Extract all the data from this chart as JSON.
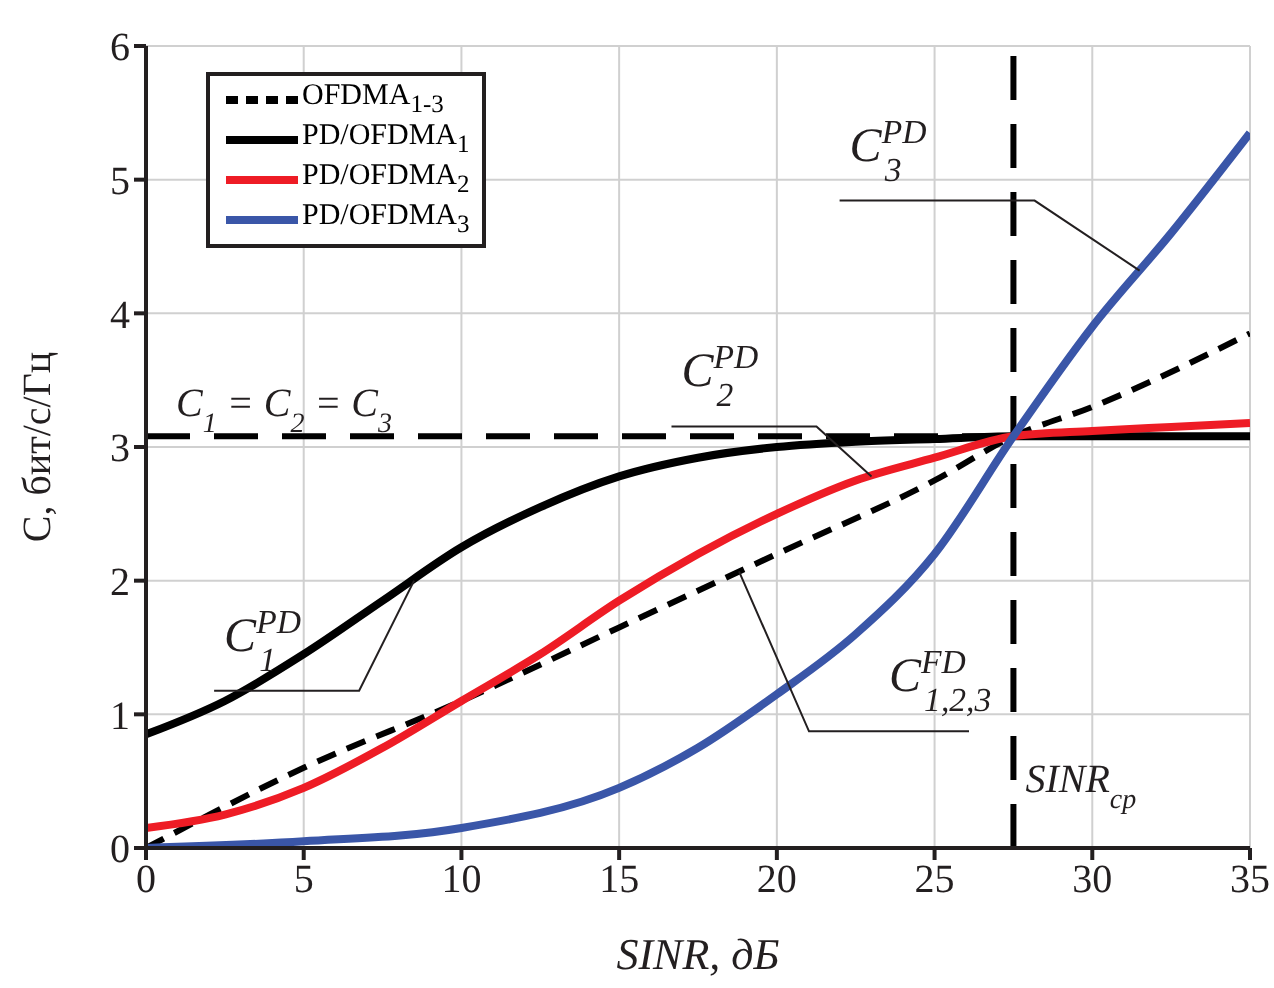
{
  "chart_data": {
    "type": "line",
    "xlabel": "SINR, дБ",
    "ylabel": "C, бит/с/Гц",
    "xlim": [
      0,
      35
    ],
    "xticks": [
      0,
      5,
      10,
      15,
      20,
      25,
      30,
      35
    ],
    "ylim": [
      0,
      6
    ],
    "yticks": [
      0,
      1,
      2,
      3,
      4,
      5,
      6
    ],
    "grid": true,
    "legend": "top left",
    "marker": "none",
    "series": [
      {
        "name": "OFDMA$_{1-3}$",
        "color": "#000000",
        "line_style": "dashed",
        "x": [
          0,
          5,
          10,
          15,
          20,
          25,
          27.5,
          30,
          35
        ],
        "values": [
          0,
          0.6,
          1.1,
          1.65,
          2.2,
          2.75,
          3.08,
          3.3,
          3.85
        ]
      },
      {
        "name": "PD/OFDMA$_{1}$",
        "color": "#000000",
        "line_style": "solid",
        "x": [
          0,
          2.5,
          5,
          7.5,
          10,
          12.5,
          15,
          17.5,
          20,
          22.5,
          25,
          27.5,
          30,
          35
        ],
        "values": [
          0.85,
          1.1,
          1.45,
          1.85,
          2.25,
          2.55,
          2.78,
          2.92,
          3.0,
          3.04,
          3.06,
          3.08,
          3.08,
          3.08
        ]
      },
      {
        "name": "PD/OFDMA$_{2}$",
        "color": "#ee1c25",
        "line_style": "solid",
        "x": [
          0,
          2.5,
          5,
          7.5,
          10,
          12.5,
          15,
          17.5,
          20,
          22.5,
          25,
          27.5,
          30,
          32.5,
          35
        ],
        "values": [
          0.15,
          0.25,
          0.45,
          0.75,
          1.1,
          1.45,
          1.85,
          2.2,
          2.5,
          2.75,
          2.92,
          3.08,
          3.12,
          3.15,
          3.18
        ]
      },
      {
        "name": "PD/OFDMA$_{3}$",
        "color": "#3a56a8",
        "line_style": "solid",
        "x": [
          0,
          5,
          10,
          15,
          17.5,
          20,
          22.5,
          25,
          27.5,
          30,
          32.5,
          35
        ],
        "values": [
          0,
          0.05,
          0.15,
          0.45,
          0.75,
          1.15,
          1.6,
          2.2,
          3.08,
          3.9,
          4.6,
          5.35
        ]
      }
    ],
    "ref_lines": [
      {
        "axis": "y",
        "value": 3.08,
        "label": "C$_{1}$ = C$_{2}$ = C$_{3}$",
        "color": "#000000",
        "line_style": "dashed"
      },
      {
        "axis": "x",
        "value": 27.5,
        "label": "SINR$_{cp}$",
        "color": "#000000",
        "line_style": "dashed"
      }
    ],
    "annotations": [
      {
        "text": "C$^{PD}$$_{1}$",
        "x": 8.5,
        "y": 2.0
      },
      {
        "text": "C$^{PD}$$_{2}$",
        "x": 23,
        "y": 2.78
      },
      {
        "text": "C$^{PD}$$_{3}$",
        "x": 31.5,
        "y": 4.32
      },
      {
        "text": "C$^{FD}$$_{1,2,3}$",
        "x": 18.8,
        "y": 2.07
      }
    ]
  }
}
